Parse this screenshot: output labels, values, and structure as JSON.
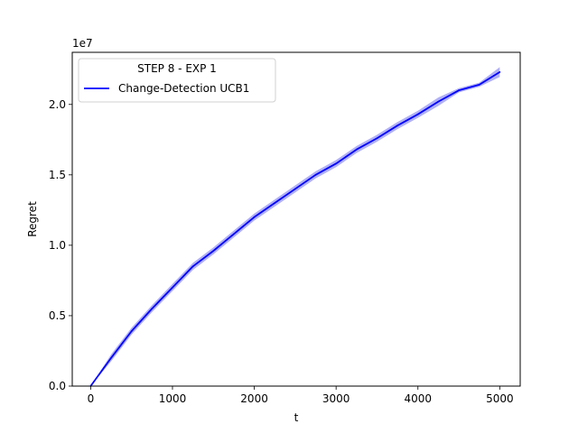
{
  "chart_data": {
    "type": "line",
    "xlabel": "t",
    "ylabel": "Regret",
    "y_scale_label": "1e7",
    "xlim": [
      -225,
      5250
    ],
    "ylim": [
      0,
      23700000
    ],
    "x_ticks": [
      0,
      1000,
      2000,
      3000,
      4000,
      5000
    ],
    "x_tick_labels": [
      "0",
      "1000",
      "2000",
      "3000",
      "4000",
      "5000"
    ],
    "y_ticks": [
      0,
      5000000,
      10000000,
      15000000,
      20000000
    ],
    "y_tick_labels": [
      "0.0",
      "0.5",
      "1.0",
      "1.5",
      "2.0"
    ],
    "grid": false,
    "legend": {
      "title": "STEP 8 - EXP 1",
      "placement": "top-left",
      "entries": [
        "Change-Detection UCB1"
      ]
    },
    "series": [
      {
        "name": "Change-Detection UCB1",
        "color": "#0000ff",
        "band_color": "#b0b0f5",
        "x": [
          0,
          250,
          500,
          750,
          1000,
          1250,
          1500,
          1750,
          2000,
          2250,
          2500,
          2750,
          3000,
          3250,
          3500,
          3750,
          4000,
          4250,
          4500,
          4750,
          5000
        ],
        "values": [
          0,
          2000000,
          3900000,
          5500000,
          7000000,
          8500000,
          9600000,
          10800000,
          12000000,
          13000000,
          14000000,
          15000000,
          15800000,
          16800000,
          17600000,
          18500000,
          19300000,
          20200000,
          21000000,
          21400000,
          22300000
        ],
        "band_halfwidth": [
          0,
          250000,
          250000,
          250000,
          250000,
          250000,
          250000,
          250000,
          250000,
          250000,
          250000,
          250000,
          250000,
          250000,
          250000,
          250000,
          250000,
          300000,
          150000,
          150000,
          350000
        ]
      }
    ]
  }
}
